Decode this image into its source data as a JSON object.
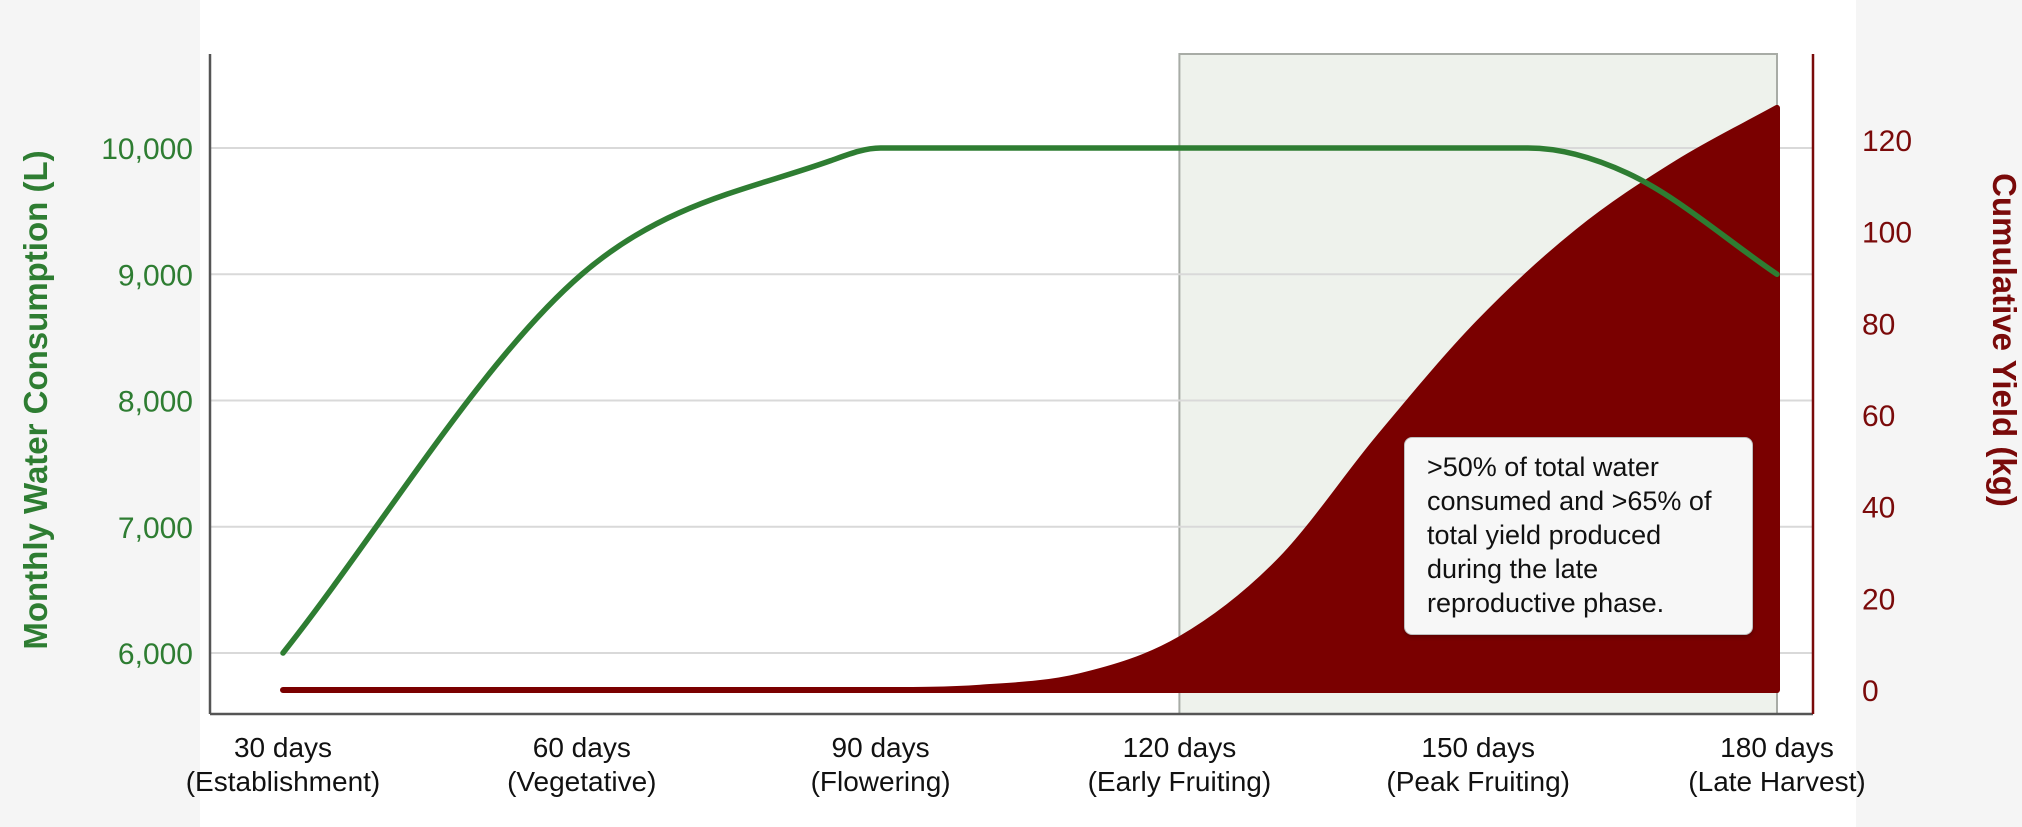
{
  "chart_data": {
    "type": "line",
    "categories": [
      "30 days\n(Establishment)",
      "60 days\n(Vegetative)",
      "90 days\n(Flowering)",
      "120 days\n(Early Fruiting)",
      "150 days\n(Peak Fruiting)",
      "180 days\n(Late Harvest)"
    ],
    "x_values": [
      30,
      60,
      90,
      120,
      150,
      180
    ],
    "xlim": [
      30,
      180
    ],
    "ylabel_left": "Monthly Water Consumption (L)",
    "ylabel_right": "Cumulative Yield (kg)",
    "ylim_left": [
      5800,
      10800
    ],
    "ylim_right": [
      -5,
      135
    ],
    "yticks_left": [
      6000,
      7000,
      8000,
      9000,
      10000
    ],
    "yticks_left_labels": [
      "6,000",
      "7,000",
      "8,000",
      "9,000",
      "10,000"
    ],
    "yticks_right": [
      0,
      20,
      40,
      60,
      80,
      100,
      120
    ],
    "yticks_right_labels": [
      "0",
      "20",
      "40",
      "60",
      "80",
      "100",
      "120"
    ],
    "grid": true,
    "series": [
      {
        "name": "",
        "axis": "left",
        "type": "line",
        "color": "#2e7d32",
        "x": [
          30,
          60,
          85,
          90,
          95,
          120,
          150,
          155,
          165,
          180
        ],
        "values": [
          6000,
          9000,
          9900,
          10000,
          10000,
          10000,
          10000,
          10000,
          9800,
          9000
        ]
      },
      {
        "name": "",
        "axis": "right",
        "type": "area",
        "color": "#7a0000",
        "x": [
          30,
          60,
          90,
          100,
          110,
          120,
          130,
          140,
          150,
          160,
          170,
          180
        ],
        "values": [
          0,
          0,
          0,
          0.5,
          3,
          11,
          28,
          55,
          80,
          100,
          115,
          127
        ]
      }
    ],
    "highlight_region": {
      "x_start": 120,
      "x_end": 180,
      "color": "#eef2ec"
    },
    "annotation": ">50% of total water consumed and >65% of total yield produced during the late reproductive phase.",
    "annotation_lines": [
      ">50% of total water",
      "consumed and >65% of",
      "total yield produced",
      "during the late",
      "reproductive phase."
    ]
  }
}
